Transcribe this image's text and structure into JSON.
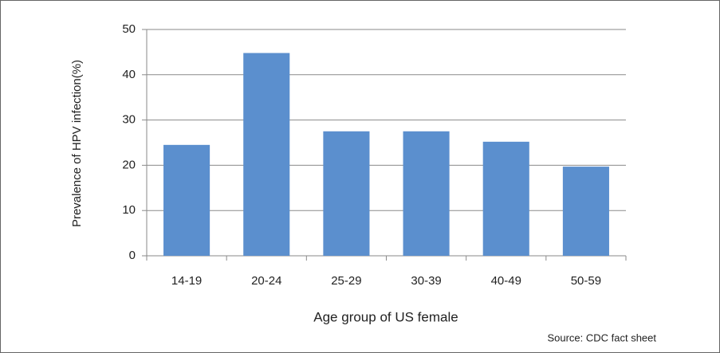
{
  "chart_data": {
    "type": "bar",
    "categories": [
      "14-19",
      "20-24",
      "25-29",
      "30-39",
      "40-49",
      "50-59"
    ],
    "values": [
      24.5,
      44.8,
      27.5,
      27.5,
      25.2,
      19.7
    ],
    "color": "#5b8fce",
    "ylim": [
      0,
      50
    ],
    "yticks": [
      0,
      10,
      20,
      30,
      40,
      50
    ],
    "grid": true,
    "y_label": "Prevalence of HPV infection(%)",
    "x_label": "Age group of US female",
    "source": "Source: CDC fact sheet"
  }
}
